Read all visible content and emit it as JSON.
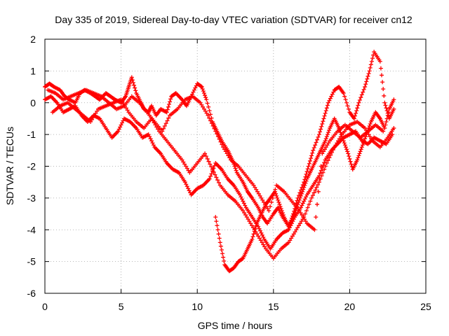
{
  "chart_data": {
    "type": "scatter",
    "title": "Day 335 of 2019, Sidereal Day-to-day VTEC variation (SDTVAR) for receiver cn12",
    "xlabel": "GPS time / hours",
    "ylabel": "SDTVAR / TECUs",
    "xlim": [
      0,
      25
    ],
    "ylim": [
      -6,
      2
    ],
    "xticks": [
      "0",
      "5",
      "10",
      "15",
      "20",
      "25"
    ],
    "yticks": [
      "-6",
      "-5",
      "-4",
      "-3",
      "-2",
      "-1",
      "0",
      "1",
      "2"
    ],
    "grid": true,
    "marker": "plus",
    "color": "#ff0000",
    "series": [
      {
        "x": [
          0.0,
          0.3,
          0.6,
          1.0,
          1.3,
          1.6,
          2.0,
          2.3,
          2.6,
          3.0,
          3.3,
          3.6,
          4.0,
          4.3,
          4.6,
          5.0,
          5.3,
          5.5,
          5.7,
          6.0,
          6.3,
          6.5,
          6.8,
          7.0,
          7.3,
          7.6,
          8.0,
          8.3,
          8.6,
          9.0,
          9.3,
          9.6,
          10.0,
          10.3,
          10.6,
          11.0,
          11.3,
          11.6,
          12.0,
          12.3,
          12.6,
          13.0,
          13.3,
          13.6,
          14.0,
          14.3,
          14.6,
          15.0,
          15.3,
          15.6,
          16.0,
          16.3,
          16.6,
          17.0,
          17.3,
          17.6,
          18.0,
          18.3,
          18.6,
          19.0,
          19.3,
          19.6,
          20.0,
          20.3,
          20.6,
          21.0,
          21.3,
          21.6,
          22.0,
          22.3,
          22.6,
          22.9
        ],
        "y": [
          0.5,
          0.6,
          0.5,
          0.4,
          0.2,
          0.1,
          0.0,
          0.3,
          0.4,
          0.3,
          0.2,
          0.1,
          0.3,
          0.2,
          0.1,
          0.0,
          0.2,
          0.5,
          0.8,
          0.3,
          0.0,
          -0.2,
          -0.3,
          -0.1,
          -0.4,
          -0.2,
          -0.3,
          0.2,
          0.3,
          0.1,
          -0.1,
          0.2,
          0.6,
          0.5,
          0.1,
          -0.6,
          -0.9,
          -1.2,
          -1.5,
          -1.8,
          -2.2,
          -2.5,
          -2.8,
          -3.0,
          -3.3,
          -3.6,
          -3.8,
          -3.5,
          -3.3,
          -3.6,
          -3.9,
          -3.5,
          -3.0,
          -2.5,
          -2.0,
          -1.5,
          -1.0,
          -0.5,
          0.0,
          0.4,
          0.5,
          0.3,
          -0.3,
          -0.5,
          0.0,
          0.5,
          1.0,
          1.6,
          1.3,
          0.0,
          -0.5,
          -0.2
        ]
      },
      {
        "x": [
          0.0,
          0.4,
          0.8,
          1.2,
          1.6,
          2.0,
          2.4,
          2.8,
          3.2,
          3.6,
          4.0,
          4.4,
          4.8,
          5.2,
          5.6,
          6.0,
          6.4,
          6.8,
          7.2,
          7.6,
          8.0,
          8.4,
          8.8,
          9.2,
          9.6,
          10.0,
          10.4,
          10.8,
          11.2,
          11.6,
          12.0,
          12.4,
          12.8,
          13.2,
          13.6,
          14.0,
          14.4,
          14.8,
          15.2,
          15.6,
          16.0,
          16.4,
          16.8,
          17.2,
          17.6,
          18.0,
          18.4,
          18.8,
          19.2,
          19.6,
          20.0,
          20.4,
          20.8,
          21.2,
          21.6,
          22.0,
          22.4,
          22.8
        ],
        "y": [
          0.1,
          0.2,
          0.0,
          -0.3,
          -0.2,
          -0.1,
          -0.4,
          -0.6,
          -0.4,
          -0.5,
          -0.8,
          -1.1,
          -0.9,
          -0.5,
          -0.6,
          -0.8,
          -1.1,
          -1.0,
          -1.4,
          -1.6,
          -1.9,
          -2.1,
          -2.2,
          -2.5,
          -2.9,
          -2.7,
          -2.6,
          -2.4,
          -1.9,
          -2.1,
          -2.4,
          -2.6,
          -2.9,
          -3.3,
          -3.6,
          -3.9,
          -4.3,
          -4.6,
          -4.3,
          -4.1,
          -4.0,
          -3.6,
          -3.3,
          -2.9,
          -2.6,
          -2.3,
          -1.8,
          -1.5,
          -1.3,
          -1.1,
          -1.0,
          -0.9,
          -1.2,
          -1.3,
          -1.1,
          -1.2,
          -1.3,
          -1.0
        ]
      },
      {
        "x": [
          0.5,
          1.0,
          1.5,
          2.0,
          2.5,
          3.0,
          3.5,
          4.0,
          4.5,
          5.0,
          5.5,
          6.0,
          6.5,
          7.0,
          7.5,
          8.0,
          8.5,
          9.0,
          9.5,
          10.0,
          10.5,
          11.0,
          11.5,
          12.0,
          12.5,
          13.0,
          13.5,
          14.0,
          14.5,
          15.0,
          15.5,
          16.0,
          16.5,
          17.0,
          17.5,
          18.0,
          18.5,
          19.0,
          19.5,
          20.0,
          20.5,
          21.0,
          21.5,
          22.0,
          22.5,
          22.9
        ],
        "y": [
          -0.3,
          -0.1,
          0.0,
          -0.2,
          -0.4,
          -0.6,
          -0.2,
          -0.1,
          0.0,
          0.1,
          -0.3,
          -0.6,
          -0.8,
          -0.5,
          -0.9,
          -1.2,
          -1.5,
          -1.8,
          -2.2,
          -1.9,
          -1.6,
          -2.1,
          -2.6,
          -2.9,
          -3.1,
          -3.4,
          -3.8,
          -4.2,
          -4.6,
          -4.9,
          -4.6,
          -4.4,
          -4.0,
          -3.6,
          -3.0,
          -2.5,
          -1.9,
          -1.4,
          -1.0,
          -0.7,
          -0.6,
          -0.8,
          -1.2,
          -1.4,
          -1.1,
          -0.8
        ]
      },
      {
        "x": [
          11.2,
          11.5,
          11.8,
          12.1,
          12.4,
          12.7,
          13.0,
          13.3,
          13.6,
          13.9,
          14.2,
          14.5,
          14.8,
          15.1,
          15.4,
          15.7,
          16.0,
          16.3,
          16.6,
          16.9,
          17.2,
          17.5,
          17.8,
          18.1,
          18.4,
          18.7,
          19.0,
          19.3,
          19.6,
          19.9,
          20.2,
          20.5,
          20.8,
          21.1,
          21.4,
          21.7,
          22.0,
          22.3,
          22.6,
          22.9
        ],
        "y": [
          -3.6,
          -4.4,
          -5.1,
          -5.3,
          -5.2,
          -5.0,
          -4.9,
          -4.6,
          -4.3,
          -3.8,
          -3.5,
          -3.2,
          -3.0,
          -2.8,
          -3.2,
          -3.6,
          -3.9,
          -3.6,
          -3.2,
          -2.8,
          -2.4,
          -2.1,
          -1.8,
          -1.5,
          -1.2,
          -0.8,
          -0.5,
          -0.8,
          -1.2,
          -1.6,
          -2.1,
          -1.8,
          -1.4,
          -1.0,
          -0.6,
          -0.3,
          -0.5,
          -0.8,
          -0.2,
          0.1
        ]
      },
      {
        "x": [
          0.2,
          0.7,
          1.2,
          1.7,
          2.2,
          2.7,
          3.2,
          3.7,
          4.2,
          4.7,
          5.2,
          5.7,
          6.2,
          6.7,
          7.2,
          7.7,
          8.2,
          8.7,
          9.2,
          9.7,
          10.2,
          10.7,
          11.2,
          11.7,
          12.2,
          12.7,
          13.2,
          13.7,
          14.2,
          14.7,
          15.2,
          15.7,
          16.2,
          16.7,
          17.2,
          17.7,
          18.2,
          18.7,
          19.2,
          19.7,
          20.2,
          20.7,
          21.2,
          21.7,
          22.2
        ],
        "y": [
          0.4,
          0.3,
          0.1,
          0.2,
          0.3,
          0.4,
          0.3,
          0.2,
          0.0,
          -0.2,
          -0.1,
          0.2,
          0.0,
          -0.3,
          -0.6,
          -0.9,
          -0.4,
          -0.2,
          0.1,
          0.2,
          0.0,
          -0.4,
          -0.9,
          -1.4,
          -1.8,
          -2.0,
          -2.3,
          -2.6,
          -3.0,
          -3.4,
          -2.6,
          -2.8,
          -3.1,
          -3.4,
          -3.8,
          -4.0,
          -1.6,
          -1.2,
          -0.9,
          -0.7,
          -0.9,
          -1.1,
          -0.9,
          -0.7,
          -0.9
        ]
      }
    ]
  }
}
